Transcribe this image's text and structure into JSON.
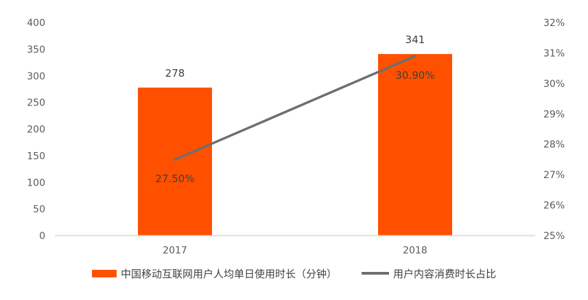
{
  "colors": {
    "bar": "#FF5000",
    "line": "#6E6E6E",
    "axis": "#D9D9D9",
    "text": "#595959"
  },
  "legend": {
    "bar_label": "中国移动互联网用户人均单日使用时长（分钟）",
    "line_label": "用户内容消费时长占比"
  },
  "chart_data": {
    "type": "bar+line",
    "categories": [
      "2017",
      "2018"
    ],
    "series": [
      {
        "name": "中国移动互联网用户人均单日使用时长（分钟）",
        "type": "bar",
        "axis": "left",
        "values": [
          278,
          341
        ],
        "labels": [
          "278",
          "341"
        ]
      },
      {
        "name": "用户内容消费时长占比",
        "type": "line",
        "axis": "right",
        "values": [
          27.5,
          30.9
        ],
        "labels": [
          "27.50%",
          "30.90%"
        ]
      }
    ],
    "y_left": {
      "min": 0,
      "max": 400,
      "ticks": [
        "0",
        "50",
        "100",
        "150",
        "200",
        "250",
        "300",
        "350",
        "400"
      ]
    },
    "y_right": {
      "min": 25,
      "max": 32,
      "ticks": [
        "25%",
        "26%",
        "27%",
        "28%",
        "29%",
        "30%",
        "31%",
        "32%"
      ]
    },
    "grid": false,
    "legend_position": "bottom"
  }
}
